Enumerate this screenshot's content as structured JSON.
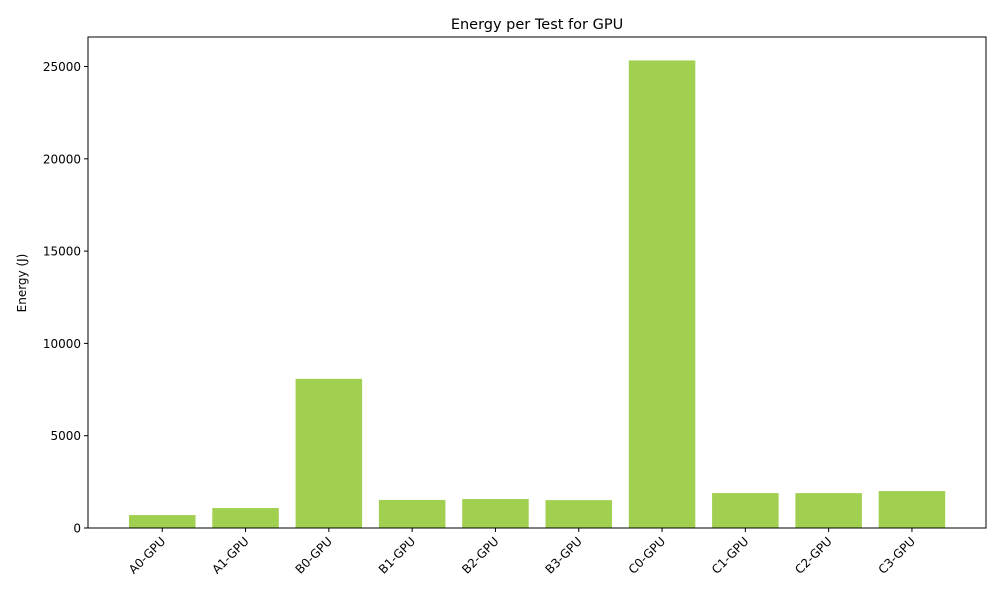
{
  "chart_data": {
    "type": "bar",
    "title": "Energy per Test for GPU",
    "xlabel": "",
    "ylabel": "Energy (J)",
    "categories": [
      "A0-GPU",
      "A1-GPU",
      "B0-GPU",
      "B1-GPU",
      "B2-GPU",
      "B3-GPU",
      "C0-GPU",
      "C1-GPU",
      "C2-GPU",
      "C3-GPU"
    ],
    "values": [
      700,
      1080,
      8080,
      1520,
      1570,
      1510,
      25330,
      1890,
      1890,
      2000
    ],
    "ylim": [
      0,
      26600
    ],
    "yticks": [
      0,
      5000,
      10000,
      15000,
      20000,
      25000
    ],
    "bar_color": "#a1cf4f",
    "grid": false,
    "legend": "none"
  }
}
